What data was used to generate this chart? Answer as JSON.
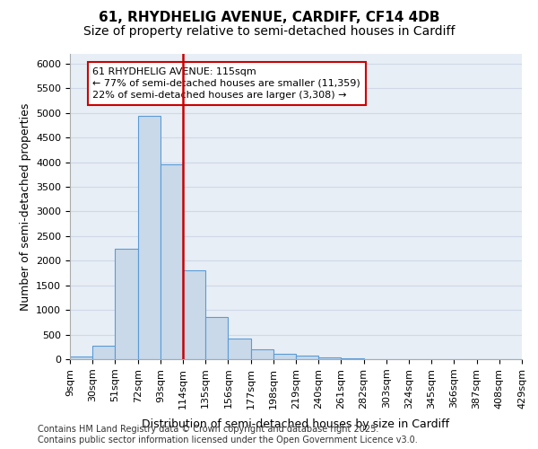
{
  "title_line1": "61, RHYDHELIG AVENUE, CARDIFF, CF14 4DB",
  "title_line2": "Size of property relative to semi-detached houses in Cardiff",
  "xlabel": "Distribution of semi-detached houses by size in Cardiff",
  "ylabel": "Number of semi-detached properties",
  "bar_values": [
    50,
    270,
    2250,
    4950,
    3950,
    1800,
    850,
    420,
    200,
    110,
    70,
    30,
    10,
    5,
    3,
    2,
    1,
    1,
    1,
    1
  ],
  "bin_labels": [
    "9sqm",
    "30sqm",
    "51sqm",
    "72sqm",
    "93sqm",
    "114sqm",
    "135sqm",
    "156sqm",
    "177sqm",
    "198sqm",
    "219sqm",
    "240sqm",
    "261sqm",
    "282sqm",
    "303sqm",
    "324sqm",
    "345sqm",
    "366sqm",
    "387sqm",
    "408sqm",
    "429sqm"
  ],
  "bar_color": "#c9d9ea",
  "bar_edge_color": "#5b9bd5",
  "marker_bin_index": 5,
  "marker_color": "#cc0000",
  "annotation_title": "61 RHYDHELIG AVENUE: 115sqm",
  "annotation_line1": "← 77% of semi-detached houses are smaller (11,359)",
  "annotation_line2": "22% of semi-detached houses are larger (3,308) →",
  "annotation_box_color": "#ffffff",
  "annotation_box_edge_color": "#cc0000",
  "ylim": [
    0,
    6200
  ],
  "ytick_values": [
    0,
    500,
    1000,
    1500,
    2000,
    2500,
    3000,
    3500,
    4000,
    4500,
    5000,
    5500,
    6000
  ],
  "grid_color": "#d0d8e8",
  "bg_color": "#e8eef5",
  "footer_line1": "Contains HM Land Registry data © Crown copyright and database right 2025.",
  "footer_line2": "Contains public sector information licensed under the Open Government Licence v3.0.",
  "title_fontsize": 11,
  "subtitle_fontsize": 10,
  "axis_label_fontsize": 9,
  "tick_fontsize": 8,
  "annotation_fontsize": 8,
  "footer_fontsize": 7
}
